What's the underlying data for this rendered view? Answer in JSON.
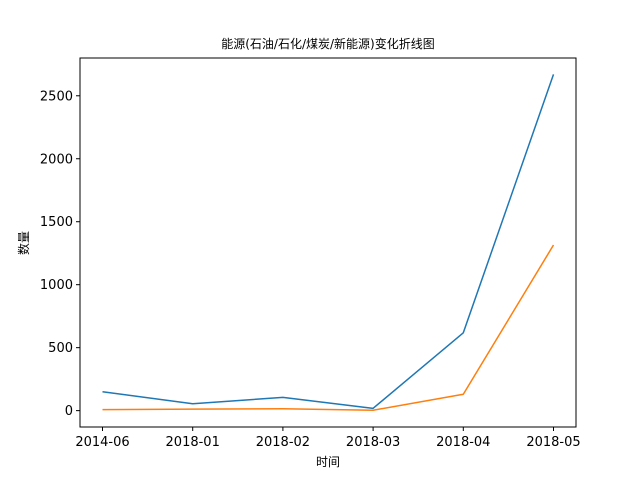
{
  "chart_data": {
    "type": "line",
    "title": "能源(石油/石化/煤炭/新能源)变化折线图",
    "xlabel": "时间",
    "ylabel": "数量",
    "categories": [
      "2014-06",
      "2018-01",
      "2018-02",
      "2018-03",
      "2018-04",
      "2018-05"
    ],
    "ylim": [
      -130,
      2800
    ],
    "yticks": [
      0,
      500,
      1000,
      1500,
      2000,
      2500
    ],
    "grid": false,
    "series": [
      {
        "color": "#1f77b4",
        "values": [
          150,
          55,
          105,
          18,
          618,
          2670
        ]
      },
      {
        "color": "#ff7f0e",
        "values": [
          8,
          12,
          15,
          3,
          130,
          1315
        ]
      }
    ]
  }
}
